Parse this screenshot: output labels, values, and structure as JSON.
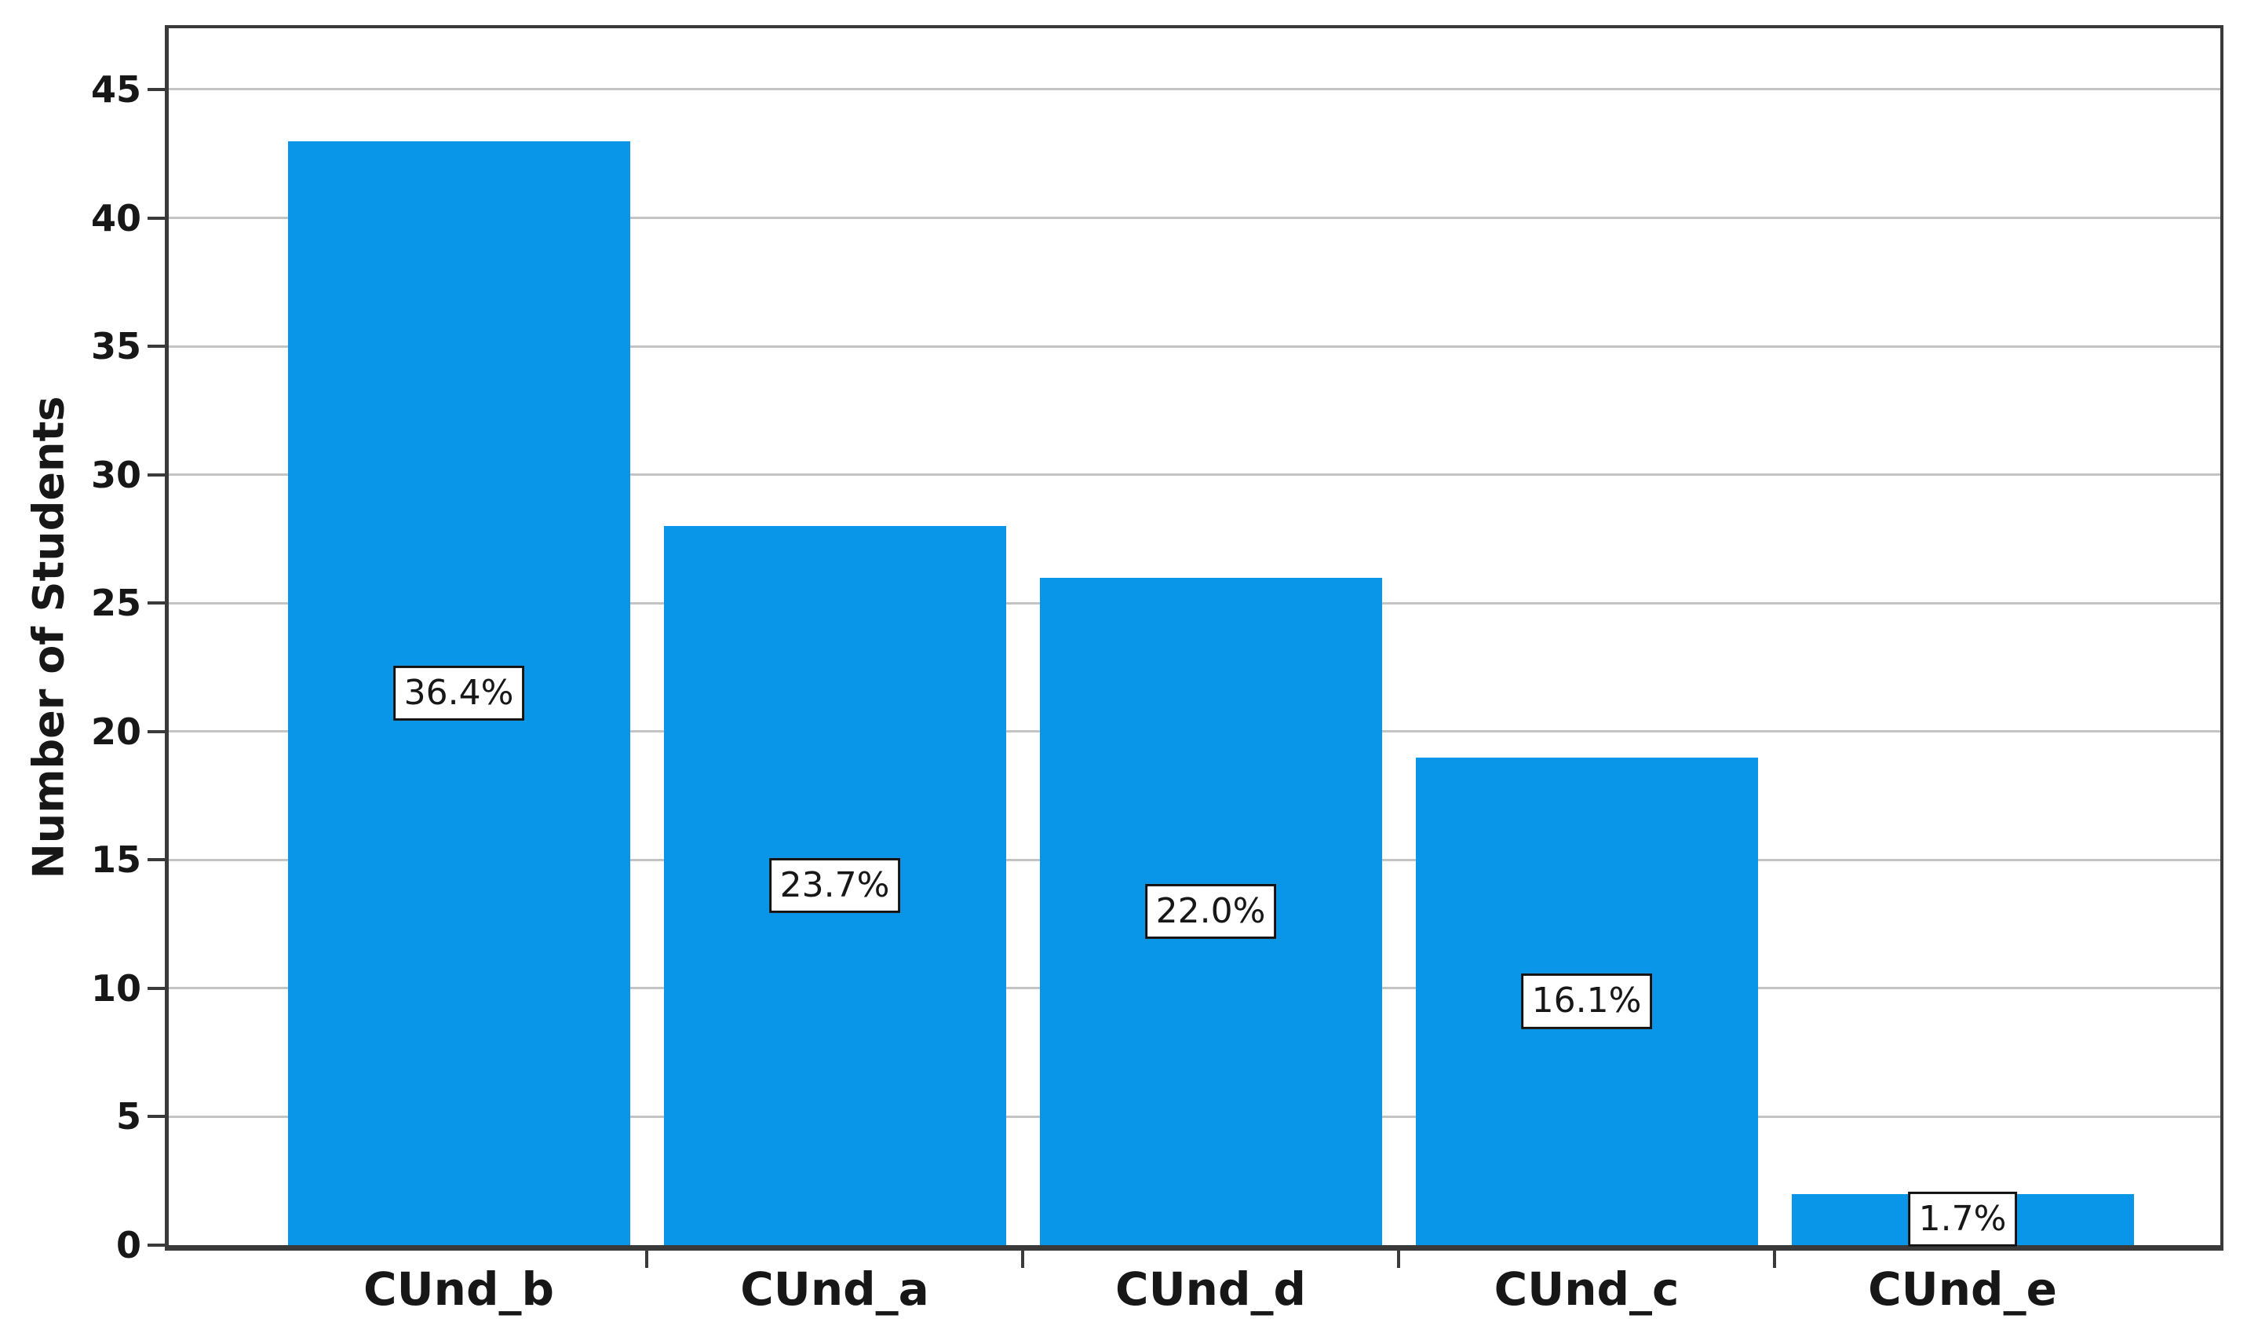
{
  "chart_data": {
    "type": "bar",
    "title": "",
    "xlabel": "",
    "ylabel": "Number of Students",
    "categories": [
      "CUnd_b",
      "CUnd_a",
      "CUnd_d",
      "CUnd_c",
      "CUnd_e"
    ],
    "values": [
      43,
      28,
      26,
      19,
      2
    ],
    "bar_labels": [
      "36.4%",
      "23.7%",
      "22.0%",
      "16.1%",
      "1.7%"
    ],
    "yticks": [
      0,
      5,
      10,
      15,
      20,
      25,
      30,
      35,
      40,
      45
    ],
    "ylim": [
      0,
      47.4
    ],
    "grid": "horizontal-only",
    "legend": "none",
    "colors": {
      "bar": "#0996E8",
      "frame": "#3A3A3A",
      "gridline": "#C4C4C4",
      "text": "#171717",
      "label_box_bg": "#FFFFFF",
      "label_box_border": "#111111"
    }
  }
}
